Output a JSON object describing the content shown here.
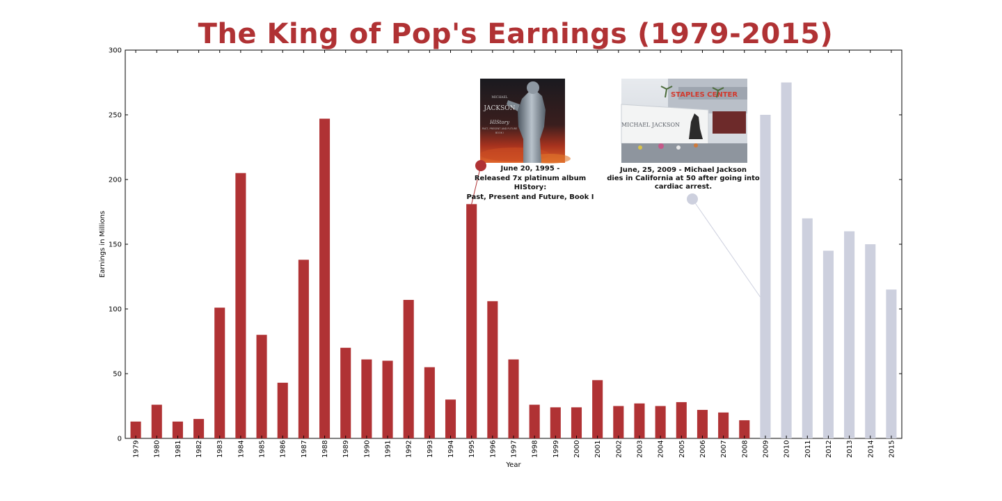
{
  "chart_data": {
    "type": "bar",
    "title": "The King of Pop's Earnings (1979-2015)",
    "xlabel": "Year",
    "ylabel": "Earnings in Millions",
    "ylim": [
      0,
      300
    ],
    "yticks": [
      0,
      50,
      100,
      150,
      200,
      250,
      300
    ],
    "grid": false,
    "categories": [
      "1979",
      "1980",
      "1981",
      "1982",
      "1983",
      "1984",
      "1985",
      "1986",
      "1987",
      "1988",
      "1989",
      "1990",
      "1991",
      "1992",
      "1993",
      "1994",
      "1995",
      "1996",
      "1997",
      "1998",
      "1999",
      "2000",
      "2001",
      "2002",
      "2003",
      "2004",
      "2005",
      "2006",
      "2007",
      "2008",
      "2009",
      "2010",
      "2011",
      "2012",
      "2013",
      "2014",
      "2015"
    ],
    "values": [
      13,
      26,
      13,
      15,
      101,
      205,
      80,
      43,
      138,
      247,
      70,
      61,
      60,
      107,
      55,
      30,
      181,
      106,
      61,
      26,
      24,
      24,
      45,
      25,
      27,
      25,
      28,
      22,
      20,
      14,
      250,
      275,
      170,
      145,
      160,
      150,
      115
    ],
    "colors": {
      "alive": "#b03234",
      "posthumous": "#cdd0de",
      "title": "#b03234"
    },
    "posthumous_from": "2009",
    "annotations": [
      {
        "id": "history",
        "year": "1995",
        "value": 181,
        "color": "#b03234",
        "image_desc": "HIStory album cover",
        "lines": [
          "June 20, 1995 -",
          "Released 7x platinum album",
          "HIStory:",
          "Past, Present and Future, Book I"
        ]
      },
      {
        "id": "death",
        "year": "2009",
        "value": 140,
        "color": "#cdd0de",
        "image_desc": "Staples Center memorial",
        "lines": [
          "June, 25, 2009 - Michael Jackson",
          "dies in California at 50 after going into",
          "cardiac arrest."
        ]
      }
    ],
    "image_texts": {
      "history_cover_top": "MICHAEL",
      "history_cover_name": "JACKSON",
      "history_cover_title": "HIStory",
      "history_cover_sub": "PAST, PRESENT AND FUTURE",
      "history_cover_book": "BOOK I",
      "staples_sign": "STAPLES CENTER",
      "memorial_name": "MICHAEL JACKSON"
    }
  }
}
